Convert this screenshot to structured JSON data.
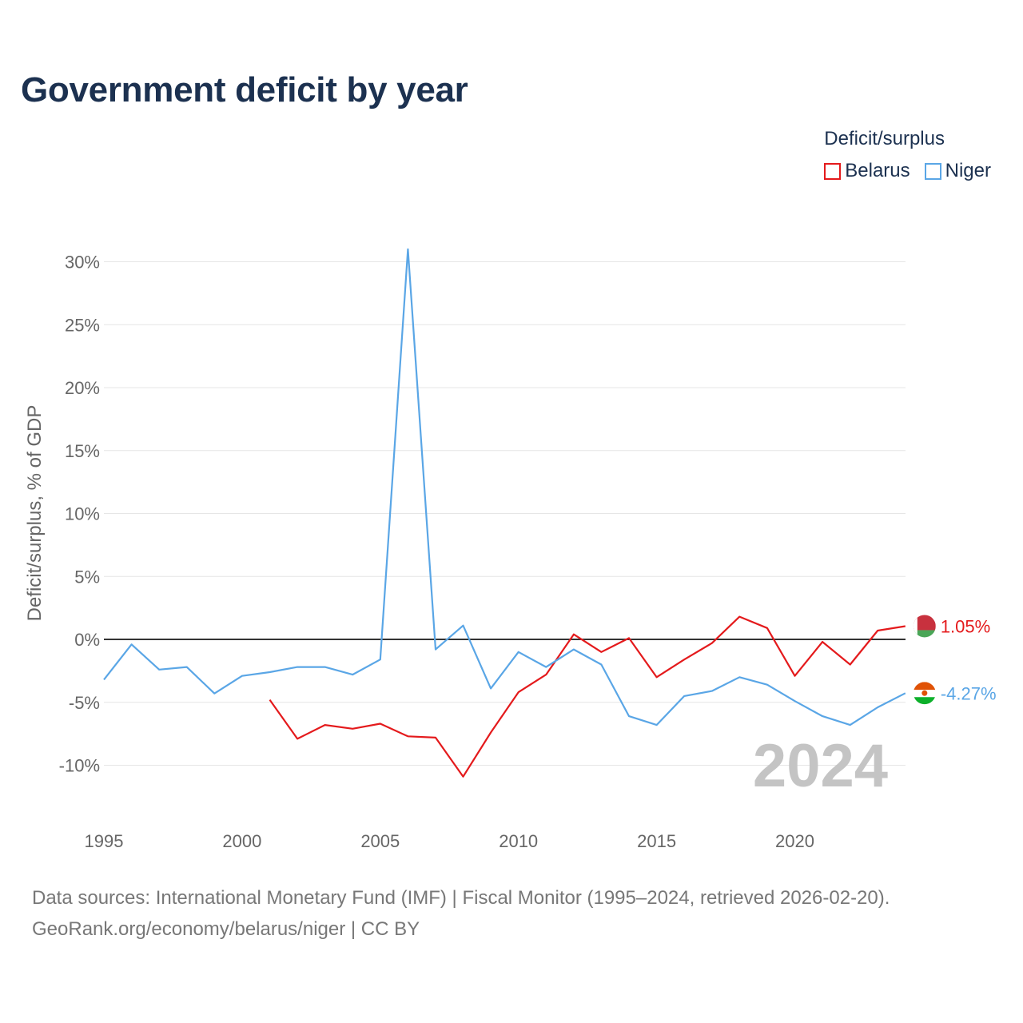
{
  "title": "Government deficit by year",
  "legend": {
    "title": "Deficit/surplus",
    "items": [
      {
        "label": "Belarus",
        "color": "#e41a1c"
      },
      {
        "label": "Niger",
        "color": "#5aa6e6"
      }
    ]
  },
  "chart_data": {
    "type": "line",
    "title": "Government deficit by year",
    "xlabel": "",
    "ylabel": "Deficit/surplus, % of GDP",
    "xlim": [
      1995,
      2024
    ],
    "ylim": [
      -14,
      33
    ],
    "x_ticks": [
      1995,
      2000,
      2005,
      2010,
      2015,
      2020
    ],
    "y_ticks": [
      30,
      25,
      20,
      15,
      10,
      5,
      0,
      -5,
      -10
    ],
    "y_tick_labels": [
      "30%",
      "25%",
      "20%",
      "15%",
      "10%",
      "5%",
      "0%",
      "-5%",
      "-10%"
    ],
    "grid": true,
    "legend_position": "top-right",
    "watermark_year": "2024",
    "series": [
      {
        "name": "Belarus",
        "color": "#e41a1c",
        "end_label": "1.05%",
        "x": [
          2001,
          2002,
          2003,
          2004,
          2005,
          2006,
          2007,
          2008,
          2009,
          2010,
          2011,
          2012,
          2013,
          2014,
          2015,
          2016,
          2017,
          2018,
          2019,
          2020,
          2021,
          2022,
          2023,
          2024
        ],
        "values": [
          -4.8,
          -7.9,
          -6.8,
          -7.1,
          -6.7,
          -7.7,
          -7.8,
          -10.9,
          -7.4,
          -4.2,
          -2.8,
          0.4,
          -1.0,
          0.1,
          -3.0,
          -1.6,
          -0.3,
          1.8,
          0.9,
          -2.9,
          -0.2,
          -2.0,
          0.7,
          1.05
        ]
      },
      {
        "name": "Niger",
        "color": "#5aa6e6",
        "end_label": "-4.27%",
        "x": [
          1995,
          1996,
          1997,
          1998,
          1999,
          2000,
          2001,
          2002,
          2003,
          2004,
          2005,
          2006,
          2007,
          2008,
          2009,
          2010,
          2011,
          2012,
          2013,
          2014,
          2015,
          2016,
          2017,
          2018,
          2019,
          2020,
          2021,
          2022,
          2023,
          2024
        ],
        "values": [
          -3.2,
          -0.4,
          -2.4,
          -2.2,
          -4.3,
          -2.9,
          -2.6,
          -2.2,
          -2.2,
          -2.8,
          -1.6,
          31.0,
          -0.8,
          1.1,
          -3.9,
          -1.0,
          -2.2,
          -0.8,
          -2.0,
          -6.1,
          -6.8,
          -4.5,
          -4.1,
          -3.0,
          -3.6,
          -4.9,
          -6.1,
          -6.8,
          -5.4,
          -4.27
        ]
      }
    ]
  },
  "sources": {
    "line1": "Data sources: International Monetary Fund (IMF) | Fiscal Monitor (1995–2024, retrieved 2026-02-20).",
    "line2": "GeoRank.org/economy/belarus/niger | CC BY"
  }
}
